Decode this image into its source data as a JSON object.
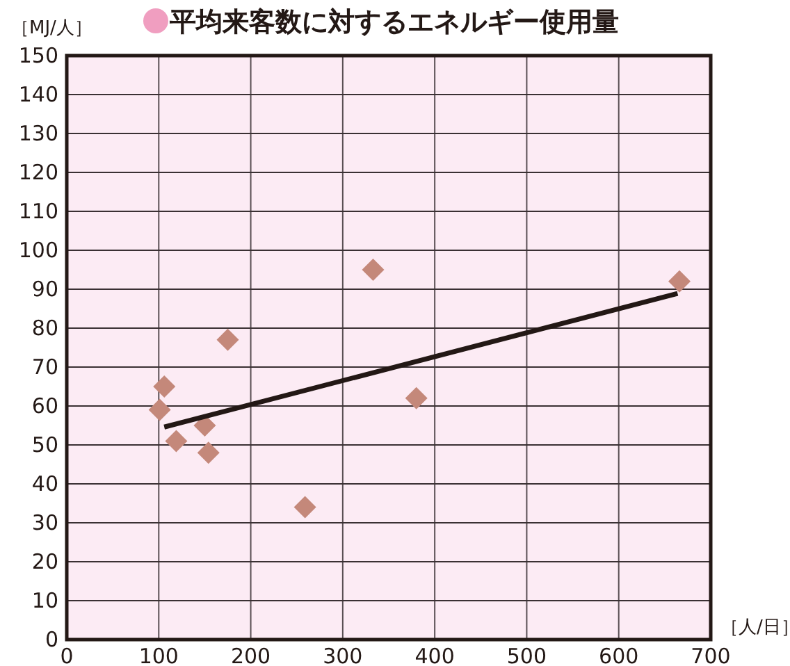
{
  "chart_data": {
    "type": "scatter",
    "title": "平均来客数に対するエネルギー使用量",
    "xlabel": "［人/日］",
    "ylabel": "［MJ/人］",
    "x": [
      106,
      101,
      119,
      150,
      154,
      175,
      259,
      333,
      380,
      666
    ],
    "series": [
      {
        "color": "#c4887a",
        "marker": "diamond",
        "values": [
          65,
          59,
          51,
          55,
          48,
          77,
          34,
          95,
          62,
          92
        ]
      },
      {
        "type": "line",
        "color": "#231815",
        "marker": "none",
        "line_style": "solid",
        "x": [
          106,
          664
        ],
        "values": [
          54.6,
          88.9
        ]
      }
    ],
    "xlim": [
      0,
      700
    ],
    "ylim": [
      0,
      150
    ],
    "xticks": [
      0,
      100,
      200,
      300,
      400,
      500,
      600,
      700
    ],
    "yticks": [
      0,
      10,
      20,
      30,
      40,
      50,
      60,
      70,
      80,
      90,
      100,
      110,
      120,
      130,
      140,
      150
    ],
    "grid": true
  }
}
